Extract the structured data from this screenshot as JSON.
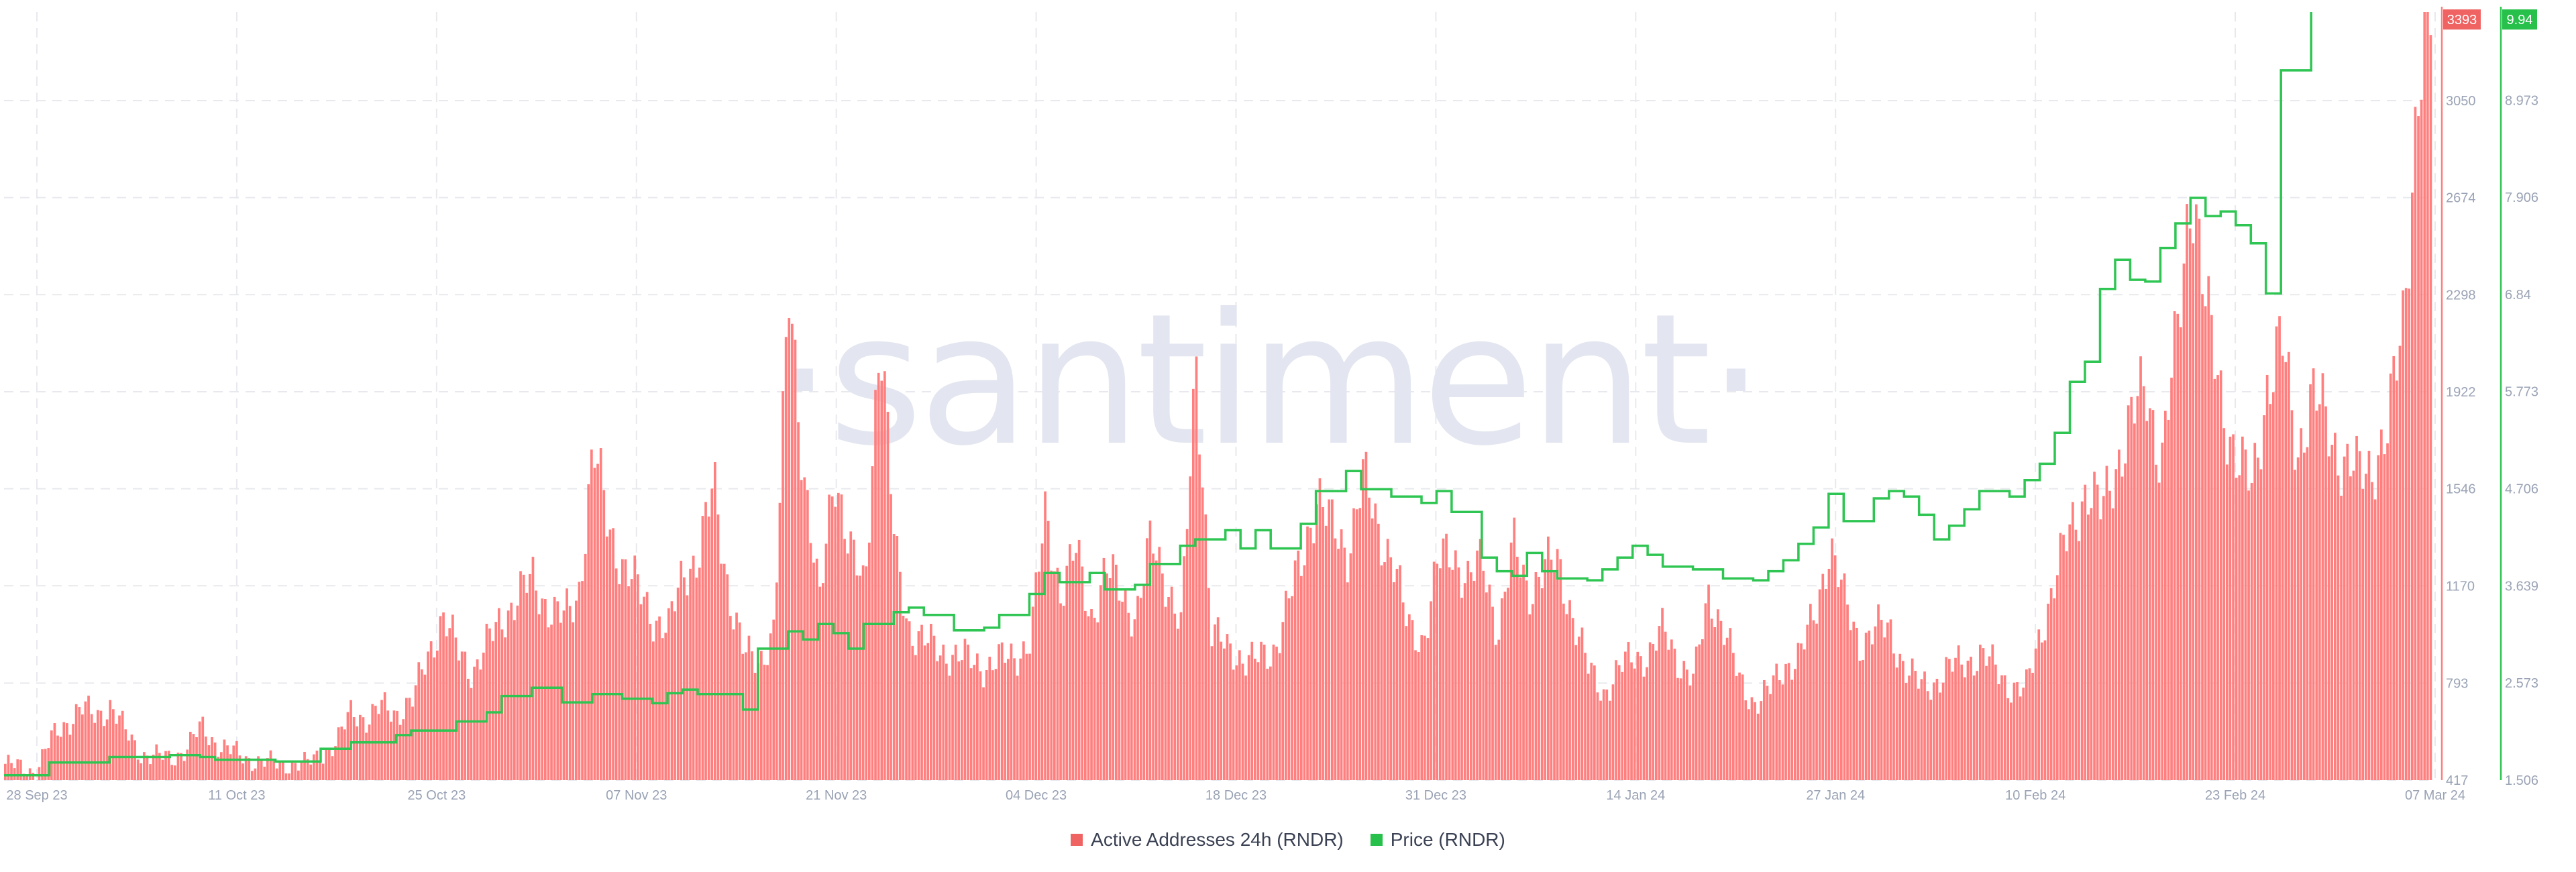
{
  "watermark": "·santiment·",
  "colors": {
    "addresses": "#ff7f7f",
    "addresses_label": "#f06363",
    "price": "#2ec552",
    "price_label": "#26c04a",
    "grid": "#e8e9ee",
    "tick": "#9aa3b5"
  },
  "legend": [
    {
      "label": "Active Addresses 24h (RNDR)",
      "color": "#f06363"
    },
    {
      "label": "Price (RNDR)",
      "color": "#26c04a"
    }
  ],
  "chart_data": {
    "type": "bar+line",
    "x_ticks": [
      "28 Sep 23",
      "11 Oct 23",
      "25 Oct 23",
      "07 Nov 23",
      "21 Nov 23",
      "04 Dec 23",
      "18 Dec 23",
      "31 Dec 23",
      "14 Jan 24",
      "27 Jan 24",
      "10 Feb 24",
      "23 Feb 24",
      "07 Mar 24"
    ],
    "x_start": "2023-09-28",
    "x_end": "2024-03-07",
    "left_axis": {
      "series": "Active Addresses 24h (RNDR)",
      "min": 417,
      "max": 3393,
      "ticks": [
        "417",
        "793",
        "1170",
        "1546",
        "1922",
        "2298",
        "2674",
        "3050"
      ],
      "last_value_label": "3393"
    },
    "right_axis": {
      "series": "Price (RNDR)",
      "min": 1.506,
      "max": 9.94,
      "ticks": [
        "1.506",
        "2.573",
        "3.639",
        "4.706",
        "5.773",
        "6.84",
        "7.906",
        "8.973"
      ],
      "last_value_label": "9.94"
    },
    "series": [
      {
        "name": "Active Addresses 24h (RNDR)",
        "kind": "bar",
        "color": "#ff7f7f",
        "points": [
          [
            "2023-09-28",
            480
          ],
          [
            "2023-09-30",
            450
          ],
          [
            "2023-10-01",
            570
          ],
          [
            "2023-10-03",
            700
          ],
          [
            "2023-10-04",
            660
          ],
          [
            "2023-10-05",
            710
          ],
          [
            "2023-10-06",
            600
          ],
          [
            "2023-10-07",
            520
          ],
          [
            "2023-10-09",
            500
          ],
          [
            "2023-10-10",
            540
          ],
          [
            "2023-10-11",
            620
          ],
          [
            "2023-10-12",
            560
          ],
          [
            "2023-10-14",
            500
          ],
          [
            "2023-10-16",
            480
          ],
          [
            "2023-10-18",
            480
          ],
          [
            "2023-10-20",
            560
          ],
          [
            "2023-10-21",
            690
          ],
          [
            "2023-10-22",
            650
          ],
          [
            "2023-10-23",
            700
          ],
          [
            "2023-10-24",
            680
          ],
          [
            "2023-10-25",
            720
          ],
          [
            "2023-10-26",
            900
          ],
          [
            "2023-10-27",
            1050
          ],
          [
            "2023-10-28",
            920
          ],
          [
            "2023-10-29",
            840
          ],
          [
            "2023-10-31",
            1050
          ],
          [
            "2023-11-01",
            1130
          ],
          [
            "2023-11-02",
            1190
          ],
          [
            "2023-11-03",
            1090
          ],
          [
            "2023-11-04",
            1040
          ],
          [
            "2023-11-05",
            1130
          ],
          [
            "2023-11-06",
            1700
          ],
          [
            "2023-11-07",
            1400
          ],
          [
            "2023-11-08",
            1250
          ],
          [
            "2023-11-09",
            1150
          ],
          [
            "2023-11-10",
            1050
          ],
          [
            "2023-11-11",
            1000
          ],
          [
            "2023-11-12",
            1230
          ],
          [
            "2023-11-13",
            1290
          ],
          [
            "2023-11-14",
            1550
          ],
          [
            "2023-11-15",
            1150
          ],
          [
            "2023-11-16",
            900
          ],
          [
            "2023-11-17",
            880
          ],
          [
            "2023-11-18",
            1000
          ],
          [
            "2023-11-19",
            2330
          ],
          [
            "2023-11-20",
            1600
          ],
          [
            "2023-11-21",
            1080
          ],
          [
            "2023-11-22",
            1650
          ],
          [
            "2023-11-23",
            1300
          ],
          [
            "2023-11-24",
            1150
          ],
          [
            "2023-11-25",
            2200
          ],
          [
            "2023-11-26",
            1300
          ],
          [
            "2023-11-27",
            1000
          ],
          [
            "2023-11-28",
            950
          ],
          [
            "2023-11-29",
            920
          ],
          [
            "2023-11-30",
            900
          ],
          [
            "2023-12-01",
            880
          ],
          [
            "2023-12-02",
            860
          ],
          [
            "2023-12-03",
            880
          ],
          [
            "2023-12-04",
            900
          ],
          [
            "2023-12-05",
            960
          ],
          [
            "2023-12-06",
            1450
          ],
          [
            "2023-12-07",
            1150
          ],
          [
            "2023-12-08",
            1300
          ],
          [
            "2023-12-09",
            1050
          ],
          [
            "2023-12-10",
            1230
          ],
          [
            "2023-12-11",
            1150
          ],
          [
            "2023-12-12",
            1050
          ],
          [
            "2023-12-13",
            1340
          ],
          [
            "2023-12-14",
            1200
          ],
          [
            "2023-12-15",
            1000
          ],
          [
            "2023-12-16",
            2050
          ],
          [
            "2023-12-17",
            1000
          ],
          [
            "2023-12-18",
            920
          ],
          [
            "2023-12-19",
            900
          ],
          [
            "2023-12-20",
            880
          ],
          [
            "2023-12-21",
            900
          ],
          [
            "2023-12-22",
            1100
          ],
          [
            "2023-12-23",
            1250
          ],
          [
            "2023-12-24",
            1550
          ],
          [
            "2023-12-25",
            1380
          ],
          [
            "2023-12-26",
            1300
          ],
          [
            "2023-12-27",
            1600
          ],
          [
            "2023-12-28",
            1380
          ],
          [
            "2023-12-29",
            1300
          ],
          [
            "2023-12-30",
            1000
          ],
          [
            "2023-12-31",
            960
          ],
          [
            "2024-01-01",
            1250
          ],
          [
            "2024-01-02",
            1300
          ],
          [
            "2024-01-03",
            1200
          ],
          [
            "2024-01-04",
            1250
          ],
          [
            "2024-01-05",
            1000
          ],
          [
            "2024-01-06",
            1320
          ],
          [
            "2024-01-07",
            1150
          ],
          [
            "2024-01-08",
            1240
          ],
          [
            "2024-01-09",
            1250
          ],
          [
            "2024-01-10",
            1050
          ],
          [
            "2024-01-11",
            840
          ],
          [
            "2024-01-12",
            760
          ],
          [
            "2024-01-13",
            840
          ],
          [
            "2024-01-14",
            900
          ],
          [
            "2024-01-15",
            900
          ],
          [
            "2024-01-16",
            1000
          ],
          [
            "2024-01-17",
            880
          ],
          [
            "2024-01-18",
            800
          ],
          [
            "2024-01-19",
            1150
          ],
          [
            "2024-01-20",
            1000
          ],
          [
            "2024-01-21",
            800
          ],
          [
            "2024-01-22",
            720
          ],
          [
            "2024-01-23",
            760
          ],
          [
            "2024-01-24",
            860
          ],
          [
            "2024-01-25",
            900
          ],
          [
            "2024-01-26",
            1050
          ],
          [
            "2024-01-27",
            1340
          ],
          [
            "2024-01-28",
            1100
          ],
          [
            "2024-01-29",
            950
          ],
          [
            "2024-01-30",
            1000
          ],
          [
            "2024-01-31",
            1000
          ],
          [
            "2024-02-01",
            850
          ],
          [
            "2024-02-02",
            780
          ],
          [
            "2024-02-03",
            800
          ],
          [
            "2024-02-04",
            850
          ],
          [
            "2024-02-05",
            880
          ],
          [
            "2024-02-06",
            900
          ],
          [
            "2024-02-07",
            850
          ],
          [
            "2024-02-08",
            780
          ],
          [
            "2024-02-09",
            760
          ],
          [
            "2024-02-10",
            1000
          ],
          [
            "2024-02-11",
            1200
          ],
          [
            "2024-02-12",
            1400
          ],
          [
            "2024-02-13",
            1550
          ],
          [
            "2024-02-14",
            1450
          ],
          [
            "2024-02-15",
            1650
          ],
          [
            "2024-02-16",
            1800
          ],
          [
            "2024-02-17",
            1950
          ],
          [
            "2024-02-18",
            1650
          ],
          [
            "2024-02-19",
            2100
          ],
          [
            "2024-02-20",
            2800
          ],
          [
            "2024-02-21",
            2200
          ],
          [
            "2024-02-22",
            1900
          ],
          [
            "2024-02-23",
            1650
          ],
          [
            "2024-02-24",
            1550
          ],
          [
            "2024-02-25",
            1950
          ],
          [
            "2024-02-26",
            2100
          ],
          [
            "2024-02-27",
            1700
          ],
          [
            "2024-02-28",
            1900
          ],
          [
            "2024-02-29",
            1800
          ],
          [
            "2024-03-01",
            1650
          ],
          [
            "2024-03-02",
            1600
          ],
          [
            "2024-03-03",
            1650
          ],
          [
            "2024-03-04",
            1750
          ],
          [
            "2024-03-05",
            2200
          ],
          [
            "2024-03-06",
            3100
          ],
          [
            "2024-03-07",
            3393
          ]
        ]
      },
      {
        "name": "Price (RNDR)",
        "kind": "line",
        "color": "#2ec552",
        "points": [
          [
            "2023-09-28",
            1.56
          ],
          [
            "2023-10-01",
            1.7
          ],
          [
            "2023-10-04",
            1.7
          ],
          [
            "2023-10-05",
            1.76
          ],
          [
            "2023-10-09",
            1.78
          ],
          [
            "2023-10-11",
            1.76
          ],
          [
            "2023-10-12",
            1.73
          ],
          [
            "2023-10-16",
            1.71
          ],
          [
            "2023-10-19",
            1.85
          ],
          [
            "2023-10-21",
            1.92
          ],
          [
            "2023-10-24",
            2.0
          ],
          [
            "2023-10-25",
            2.05
          ],
          [
            "2023-10-28",
            2.15
          ],
          [
            "2023-10-30",
            2.25
          ],
          [
            "2023-10-31",
            2.43
          ],
          [
            "2023-11-02",
            2.52
          ],
          [
            "2023-11-04",
            2.36
          ],
          [
            "2023-11-06",
            2.45
          ],
          [
            "2023-11-08",
            2.4
          ],
          [
            "2023-11-10",
            2.35
          ],
          [
            "2023-11-11",
            2.46
          ],
          [
            "2023-11-12",
            2.5
          ],
          [
            "2023-11-13",
            2.45
          ],
          [
            "2023-11-16",
            2.28
          ],
          [
            "2023-11-17",
            2.95
          ],
          [
            "2023-11-19",
            3.14
          ],
          [
            "2023-11-20",
            3.05
          ],
          [
            "2023-11-21",
            3.22
          ],
          [
            "2023-11-22",
            3.12
          ],
          [
            "2023-11-23",
            2.95
          ],
          [
            "2023-11-24",
            3.22
          ],
          [
            "2023-11-26",
            3.35
          ],
          [
            "2023-11-27",
            3.4
          ],
          [
            "2023-11-28",
            3.32
          ],
          [
            "2023-11-30",
            3.15
          ],
          [
            "2023-12-02",
            3.18
          ],
          [
            "2023-12-03",
            3.32
          ],
          [
            "2023-12-05",
            3.55
          ],
          [
            "2023-12-06",
            3.78
          ],
          [
            "2023-12-07",
            3.68
          ],
          [
            "2023-12-09",
            3.78
          ],
          [
            "2023-12-10",
            3.6
          ],
          [
            "2023-12-12",
            3.65
          ],
          [
            "2023-12-13",
            3.88
          ],
          [
            "2023-12-15",
            4.08
          ],
          [
            "2023-12-16",
            4.15
          ],
          [
            "2023-12-18",
            4.25
          ],
          [
            "2023-12-19",
            4.05
          ],
          [
            "2023-12-20",
            4.25
          ],
          [
            "2023-12-21",
            4.05
          ],
          [
            "2023-12-23",
            4.32
          ],
          [
            "2023-12-24",
            4.68
          ],
          [
            "2023-12-26",
            4.9
          ],
          [
            "2023-12-27",
            4.7
          ],
          [
            "2023-12-29",
            4.62
          ],
          [
            "2023-12-31",
            4.55
          ],
          [
            "2024-01-01",
            4.68
          ],
          [
            "2024-01-02",
            4.45
          ],
          [
            "2024-01-04",
            3.95
          ],
          [
            "2024-01-05",
            3.8
          ],
          [
            "2024-01-06",
            3.75
          ],
          [
            "2024-01-07",
            4.0
          ],
          [
            "2024-01-08",
            3.8
          ],
          [
            "2024-01-09",
            3.72
          ],
          [
            "2024-01-11",
            3.7
          ],
          [
            "2024-01-12",
            3.82
          ],
          [
            "2024-01-13",
            3.95
          ],
          [
            "2024-01-14",
            4.08
          ],
          [
            "2024-01-15",
            3.98
          ],
          [
            "2024-01-16",
            3.85
          ],
          [
            "2024-01-18",
            3.82
          ],
          [
            "2024-01-20",
            3.72
          ],
          [
            "2024-01-22",
            3.7
          ],
          [
            "2024-01-23",
            3.8
          ],
          [
            "2024-01-24",
            3.92
          ],
          [
            "2024-01-25",
            4.1
          ],
          [
            "2024-01-26",
            4.28
          ],
          [
            "2024-01-27",
            4.65
          ],
          [
            "2024-01-28",
            4.35
          ],
          [
            "2024-01-30",
            4.6
          ],
          [
            "2024-01-31",
            4.68
          ],
          [
            "2024-02-01",
            4.62
          ],
          [
            "2024-02-02",
            4.42
          ],
          [
            "2024-02-03",
            4.15
          ],
          [
            "2024-02-04",
            4.3
          ],
          [
            "2024-02-05",
            4.48
          ],
          [
            "2024-02-06",
            4.68
          ],
          [
            "2024-02-08",
            4.62
          ],
          [
            "2024-02-09",
            4.8
          ],
          [
            "2024-02-10",
            4.98
          ],
          [
            "2024-02-11",
            5.32
          ],
          [
            "2024-02-12",
            5.88
          ],
          [
            "2024-02-13",
            6.1
          ],
          [
            "2024-02-14",
            6.9
          ],
          [
            "2024-02-15",
            7.22
          ],
          [
            "2024-02-16",
            7.0
          ],
          [
            "2024-02-17",
            6.98
          ],
          [
            "2024-02-18",
            7.35
          ],
          [
            "2024-02-19",
            7.62
          ],
          [
            "2024-02-20",
            7.9
          ],
          [
            "2024-02-21",
            7.7
          ],
          [
            "2024-02-22",
            7.75
          ],
          [
            "2024-02-23",
            7.6
          ],
          [
            "2024-02-24",
            7.4
          ],
          [
            "2024-02-25",
            6.85
          ],
          [
            "2024-02-26",
            9.3
          ],
          [
            "2024-02-28",
            9.94
          ]
        ]
      }
    ]
  }
}
